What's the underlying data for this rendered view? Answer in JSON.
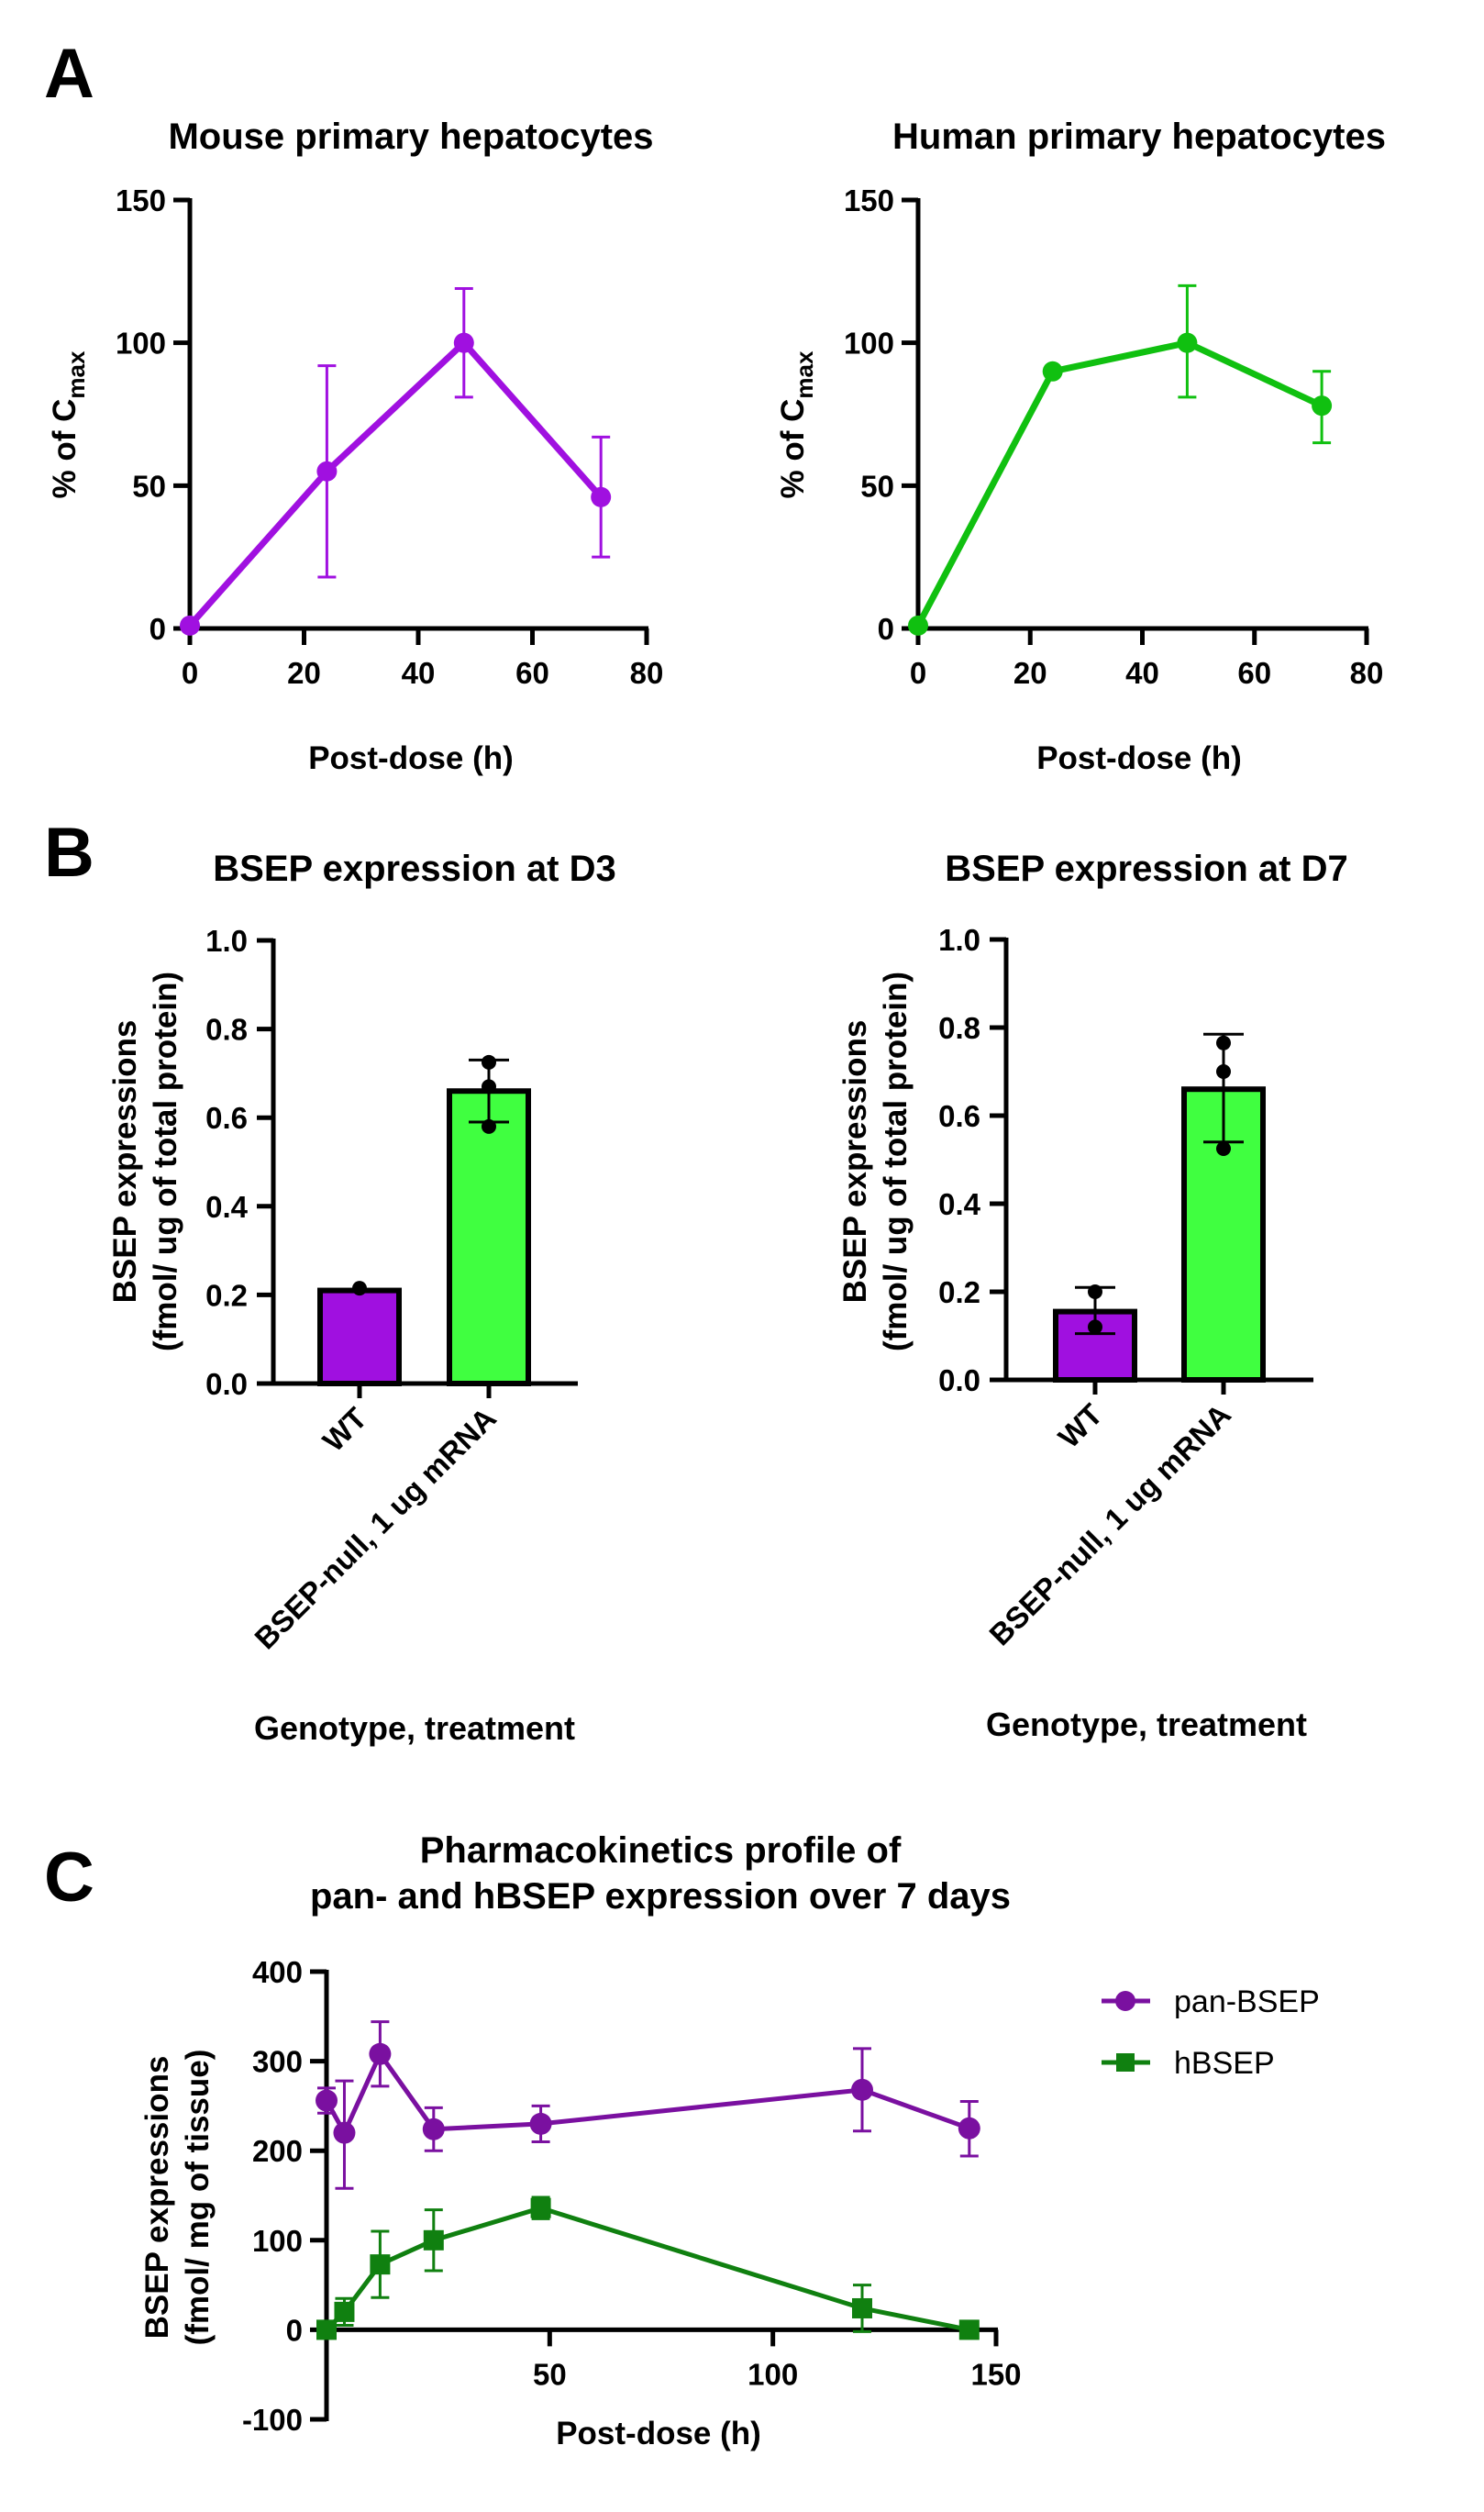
{
  "panels": {
    "A": "A",
    "B": "B",
    "C": "C"
  },
  "chart_data": [
    {
      "id": "mouse",
      "type": "line",
      "title": "Mouse primary hepatocytes",
      "xlabel": "Post-dose (h)",
      "ylabel_main": "% of C",
      "ylabel_sub": "max",
      "xlim": [
        0,
        80
      ],
      "ylim": [
        0,
        150
      ],
      "xticks": [
        0,
        20,
        40,
        60,
        80
      ],
      "yticks": [
        0,
        50,
        100,
        150
      ],
      "color": "#a010e0",
      "x": [
        0,
        24,
        48,
        72
      ],
      "y": [
        1,
        55,
        100,
        46
      ],
      "err_low": [
        null,
        18,
        81,
        25
      ],
      "err_high": [
        null,
        92,
        119,
        67
      ]
    },
    {
      "id": "human",
      "type": "line",
      "title": "Human primary hepatocytes",
      "xlabel": "Post-dose (h)",
      "ylabel_main": "% of C",
      "ylabel_sub": "max",
      "xlim": [
        0,
        80
      ],
      "ylim": [
        0,
        150
      ],
      "xticks": [
        0,
        20,
        40,
        60,
        80
      ],
      "yticks": [
        0,
        50,
        100,
        150
      ],
      "color": "#10c010",
      "x": [
        0,
        24,
        48,
        72
      ],
      "y": [
        1,
        90,
        100,
        78
      ],
      "err_low": [
        null,
        null,
        81,
        65
      ],
      "err_high": [
        null,
        null,
        120,
        90
      ]
    },
    {
      "id": "d3",
      "type": "bar",
      "title": "BSEP expression at D3",
      "xlabel": "Genotype, treatment",
      "ylabel_line1": "BSEP expressions",
      "ylabel_line2": "(fmol/ ug of total protein)",
      "ylim": [
        0,
        1.0
      ],
      "yticks": [
        "0.0",
        "0.2",
        "0.4",
        "0.6",
        "0.8",
        "1.0"
      ],
      "categories": [
        "WT",
        "BSEP-null, 1 ug mRNA"
      ],
      "values": [
        0.21,
        0.66
      ],
      "colors": [
        "#a010e0",
        "#40ff40"
      ],
      "err_low": [
        null,
        0.59
      ],
      "err_high": [
        null,
        0.73
      ],
      "points": [
        [
          0.215
        ],
        [
          0.58,
          0.67,
          0.725
        ]
      ]
    },
    {
      "id": "d7",
      "type": "bar",
      "title": "BSEP expression at D7",
      "xlabel": "Genotype, treatment",
      "ylabel_line1": "BSEP expressions",
      "ylabel_line2": "(fmol/ ug of total protein)",
      "ylim": [
        0,
        1.0
      ],
      "yticks": [
        "0.0",
        "0.2",
        "0.4",
        "0.6",
        "0.8",
        "1.0"
      ],
      "categories": [
        "WT",
        "BSEP-null, 1 ug mRNA"
      ],
      "values": [
        0.155,
        0.66
      ],
      "colors": [
        "#a010e0",
        "#40ff40"
      ],
      "err_low": [
        0.105,
        0.54
      ],
      "err_high": [
        0.21,
        0.785
      ],
      "points": [
        [
          0.2,
          0.12
        ],
        [
          0.765,
          0.7,
          0.525
        ]
      ]
    },
    {
      "id": "pk",
      "type": "line",
      "title_line1": "Pharmacokinetics profile of",
      "title_line2": "pan- and hBSEP expression over 7 days",
      "xlabel": "Post-dose (h)",
      "ylabel_line1": "BSEP expressions",
      "ylabel_line2": "(fmol/ mg of tissue)",
      "xlim": [
        0,
        150
      ],
      "ylim": [
        -100,
        400
      ],
      "xticks": [
        50,
        100,
        150
      ],
      "yticks": [
        -100,
        0,
        100,
        200,
        300,
        400
      ],
      "legend_position": "top-right",
      "series": [
        {
          "name": "pan-BSEP",
          "marker": "circle",
          "color": "#7a10a0",
          "x": [
            0,
            4,
            12,
            24,
            48,
            120,
            144
          ],
          "y": [
            256,
            220,
            308,
            224,
            230,
            268,
            225
          ],
          "err_low": [
            242,
            158,
            272,
            200,
            210,
            222,
            194
          ],
          "err_high": [
            270,
            278,
            344,
            248,
            250,
            314,
            255
          ]
        },
        {
          "name": "hBSEP",
          "marker": "square",
          "color": "#108010",
          "x": [
            0,
            4,
            12,
            24,
            48,
            120,
            144
          ],
          "y": [
            0,
            20,
            73,
            100,
            136,
            24,
            0
          ],
          "err_low": [
            null,
            5,
            36,
            66,
            124,
            -2,
            null
          ],
          "err_high": [
            null,
            35,
            110,
            134,
            148,
            50,
            null
          ]
        }
      ]
    }
  ]
}
